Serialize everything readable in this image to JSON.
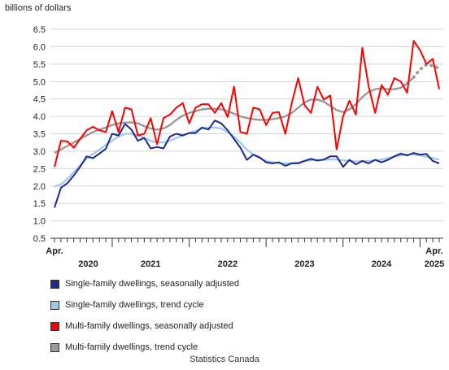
{
  "chart_data": {
    "type": "line",
    "ylabel": "billions of dollars",
    "ylim": [
      0.5,
      6.5
    ],
    "yticks": [
      "0.5",
      "1.0",
      "1.5",
      "2.0",
      "2.5",
      "3.0",
      "3.5",
      "4.0",
      "4.5",
      "5.0",
      "5.5",
      "6.0",
      "6.5"
    ],
    "x_start": "2020-04",
    "x_end": "2025-04",
    "xlabels": {
      "start_month": "Apr.",
      "end_month": "Apr.",
      "years": [
        "2020",
        "2021",
        "2022",
        "2023",
        "2024",
        "2025"
      ]
    },
    "grid": "horizontal",
    "legend_position": "bottom",
    "series": [
      {
        "name": "Single-family dwellings, seasonally adjusted",
        "color": "#1f2a8c",
        "style": "solid",
        "values": [
          1.38,
          1.95,
          2.08,
          2.3,
          2.55,
          2.85,
          2.8,
          2.93,
          3.07,
          3.5,
          3.45,
          3.78,
          3.62,
          3.3,
          3.38,
          3.08,
          3.12,
          3.08,
          3.42,
          3.5,
          3.45,
          3.52,
          3.52,
          3.68,
          3.62,
          3.88,
          3.8,
          3.6,
          3.35,
          3.1,
          2.75,
          2.9,
          2.82,
          2.68,
          2.65,
          2.68,
          2.58,
          2.65,
          2.65,
          2.72,
          2.78,
          2.73,
          2.76,
          2.85,
          2.85,
          2.55,
          2.75,
          2.62,
          2.72,
          2.65,
          2.75,
          2.68,
          2.75,
          2.85,
          2.93,
          2.88,
          2.95,
          2.9,
          2.92,
          2.72,
          2.65
        ]
      },
      {
        "name": "Single-family dwellings, trend cycle",
        "color": "#9ec8ec",
        "style": "solid",
        "values": [
          1.98,
          2.05,
          2.2,
          2.4,
          2.6,
          2.78,
          2.92,
          3.05,
          3.18,
          3.3,
          3.42,
          3.5,
          3.5,
          3.45,
          3.38,
          3.3,
          3.25,
          3.25,
          3.3,
          3.38,
          3.45,
          3.52,
          3.58,
          3.65,
          3.68,
          3.68,
          3.65,
          3.55,
          3.42,
          3.25,
          3.05,
          2.9,
          2.8,
          2.72,
          2.68,
          2.66,
          2.65,
          2.66,
          2.68,
          2.72,
          2.74,
          2.75,
          2.75,
          2.76,
          2.76,
          2.74,
          2.72,
          2.71,
          2.71,
          2.72,
          2.74,
          2.76,
          2.8,
          2.84,
          2.88,
          2.9,
          2.9,
          2.88,
          2.84,
          2.8,
          2.76
        ]
      },
      {
        "name": "Multi-family dwellings, seasonally adjusted",
        "color": "#ff0000",
        "style": "solid",
        "values": [
          2.55,
          3.3,
          3.28,
          3.1,
          3.35,
          3.6,
          3.7,
          3.6,
          3.55,
          4.15,
          3.55,
          4.25,
          4.2,
          3.45,
          3.5,
          3.95,
          3.2,
          3.95,
          4.05,
          4.25,
          4.38,
          3.8,
          4.25,
          4.35,
          4.35,
          4.1,
          4.38,
          3.98,
          4.85,
          3.55,
          3.5,
          4.25,
          4.2,
          3.75,
          4.1,
          4.12,
          3.5,
          4.38,
          5.1,
          4.32,
          4.1,
          4.85,
          4.48,
          4.6,
          3.05,
          4.0,
          4.45,
          4.05,
          5.97,
          4.85,
          4.1,
          4.9,
          4.62,
          5.1,
          5.0,
          4.68,
          6.17,
          5.9,
          5.5,
          5.65,
          4.78
        ]
      },
      {
        "name": "Multi-family dwellings, trend cycle",
        "color": "#999999",
        "style": "solid",
        "dotted_from_index": 56,
        "values": [
          2.95,
          3.05,
          3.15,
          3.25,
          3.35,
          3.45,
          3.55,
          3.62,
          3.68,
          3.75,
          3.8,
          3.82,
          3.83,
          3.8,
          3.72,
          3.65,
          3.62,
          3.65,
          3.75,
          3.9,
          4.02,
          4.1,
          4.15,
          4.2,
          4.22,
          4.22,
          4.2,
          4.15,
          4.08,
          4.0,
          3.95,
          3.92,
          3.9,
          3.9,
          3.92,
          3.95,
          4.0,
          4.1,
          4.25,
          4.4,
          4.48,
          4.48,
          4.42,
          4.3,
          4.18,
          4.12,
          4.2,
          4.35,
          4.55,
          4.7,
          4.78,
          4.8,
          4.78,
          4.78,
          4.82,
          4.95,
          5.12,
          5.35,
          5.48,
          5.45,
          5.38
        ]
      }
    ]
  },
  "source": "Statistics Canada"
}
